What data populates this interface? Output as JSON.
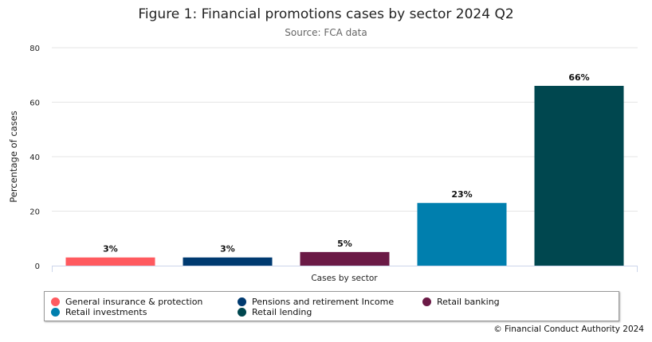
{
  "chart_data": {
    "type": "bar",
    "title": "Figure 1: Financial promotions cases by sector 2024 Q2",
    "subtitle": "Source: FCA data",
    "xlabel": "Cases by sector",
    "ylabel": "Percentage of cases",
    "ylim": [
      0,
      80
    ],
    "yticks": [
      0,
      20,
      40,
      60,
      80
    ],
    "grid": true,
    "legend_placement": "bottom",
    "categories": [
      "General insurance & protection",
      "Pensions and retirement Income",
      "Retail banking",
      "Retail investments",
      "Retail lending"
    ],
    "values": [
      3,
      3,
      5,
      23,
      66
    ],
    "data_labels": [
      "3%",
      "3%",
      "5%",
      "23%",
      "66%"
    ],
    "colors": [
      "#ff5a5f",
      "#003a70",
      "#6b1a46",
      "#007fae",
      "#00474f"
    ]
  },
  "credit": "© Financial Conduct Authority 2024"
}
